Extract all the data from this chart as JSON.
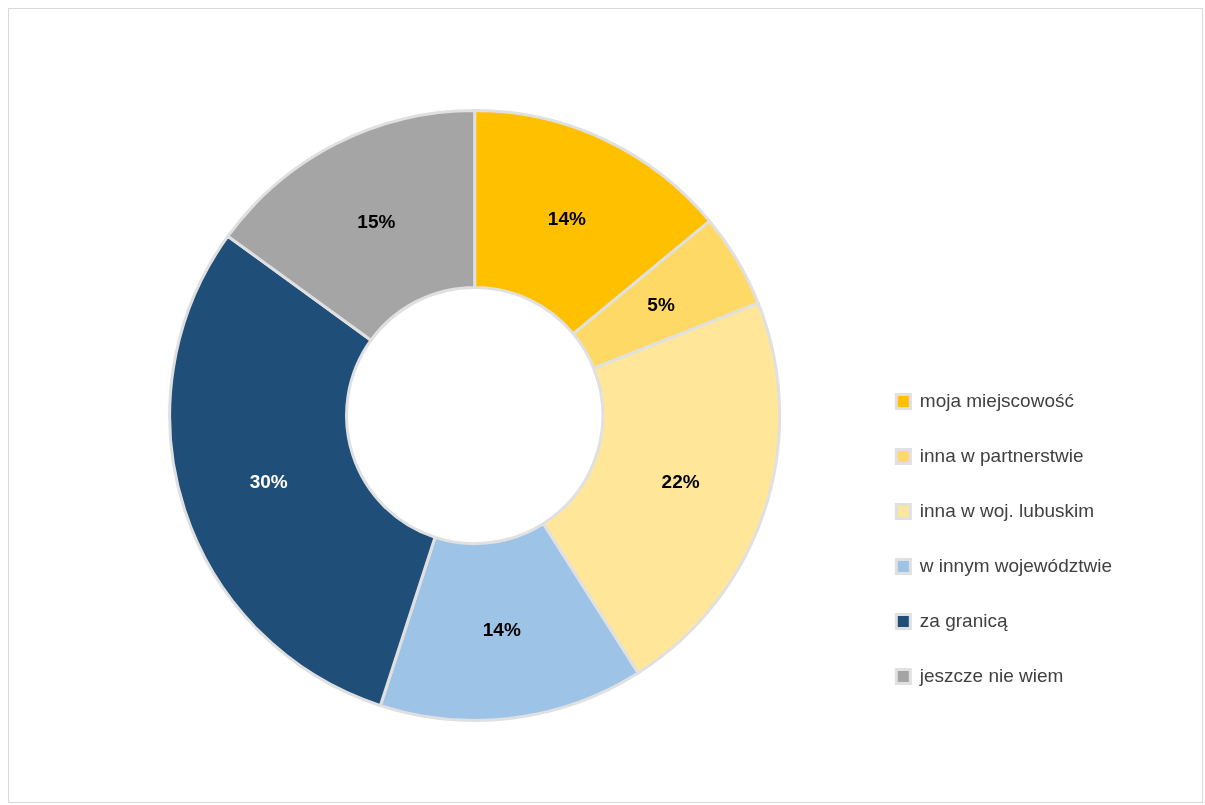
{
  "chart_data": {
    "type": "donut",
    "categories": [
      "moja miejscowość",
      "inna w partnerstwie",
      "inna w woj. lubuskim",
      "w innym województwie",
      "za granicą",
      "jeszcze nie wiem"
    ],
    "values": [
      14,
      5,
      22,
      14,
      30,
      15
    ],
    "colors": [
      "#ffc000",
      "#ffd966",
      "#ffe699",
      "#9dc3e6",
      "#1f4e79",
      "#a5a5a5"
    ],
    "value_labels": [
      "14%",
      "5%",
      "22%",
      "14%",
      "30%",
      "15%"
    ],
    "legend": "right"
  }
}
